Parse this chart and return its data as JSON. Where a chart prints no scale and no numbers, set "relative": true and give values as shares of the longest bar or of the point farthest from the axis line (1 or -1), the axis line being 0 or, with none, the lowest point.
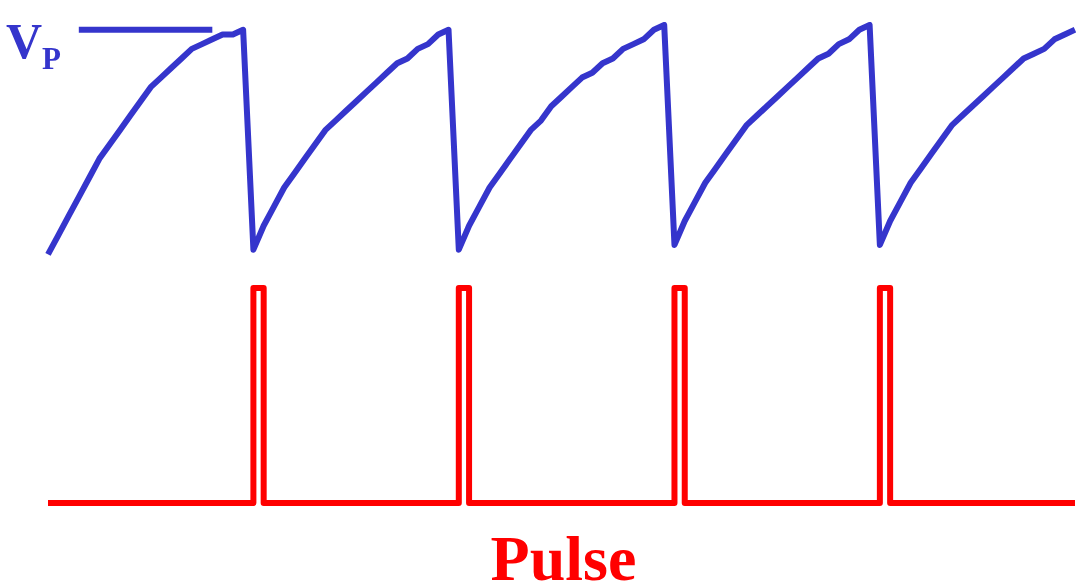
{
  "chart_data": {
    "type": "line",
    "relative": true,
    "legend": false,
    "marker": "none",
    "line_style": "solid",
    "categories": [
      null,
      null,
      null,
      null,
      null,
      null,
      null,
      null,
      null,
      null,
      null,
      null,
      null,
      null,
      null,
      null,
      null,
      null,
      null,
      null,
      null,
      null,
      null,
      null,
      null,
      null,
      null,
      null,
      null,
      null,
      null,
      null,
      null,
      null,
      null,
      null,
      null,
      null,
      null,
      null,
      null,
      null,
      null,
      null,
      null,
      null,
      null,
      null,
      null,
      null,
      null,
      null,
      null,
      null,
      null,
      null,
      null,
      null,
      null,
      null,
      null,
      null,
      null,
      null,
      null,
      null,
      null,
      null,
      null,
      null,
      null,
      null,
      null,
      null,
      null,
      null,
      null,
      null,
      null,
      null,
      null,
      null,
      null,
      null,
      null,
      null,
      null,
      null,
      null,
      null,
      null,
      null,
      null,
      null,
      null,
      null,
      null,
      null,
      null,
      null,
      null
    ],
    "annotations": [
      "V$_{P}$",
      "Pulse"
    ],
    "series": [
      {
        "color": "#3535cc",
        "values": [
          0.52,
          0.56,
          0.6,
          0.64,
          0.68,
          0.72,
          0.75,
          0.78,
          0.81,
          0.84,
          0.87,
          0.89,
          0.91,
          0.93,
          0.95,
          0.96,
          0.97,
          0.98,
          0.98,
          0.99,
          0.53,
          0.58,
          0.62,
          0.66,
          0.69,
          0.72,
          0.75,
          0.78,
          0.8,
          0.82,
          0.84,
          0.86,
          0.88,
          0.9,
          0.92,
          0.93,
          0.95,
          0.96,
          0.98,
          0.99,
          0.53,
          0.58,
          0.62,
          0.66,
          0.69,
          0.72,
          0.75,
          0.78,
          0.8,
          0.83,
          0.85,
          0.87,
          0.89,
          0.9,
          0.92,
          0.93,
          0.95,
          0.96,
          0.97,
          0.99,
          1.0,
          0.54,
          0.59,
          0.63,
          0.67,
          0.7,
          0.73,
          0.76,
          0.79,
          0.81,
          0.83,
          0.85,
          0.87,
          0.89,
          0.91,
          0.93,
          0.94,
          0.96,
          0.97,
          0.99,
          1.0,
          0.54,
          0.59,
          0.63,
          0.67,
          0.7,
          0.73,
          0.76,
          0.79,
          0.81,
          0.83,
          0.85,
          0.87,
          0.89,
          0.91,
          0.93,
          0.94,
          0.95,
          0.97,
          0.98,
          0.99
        ]
      },
      {
        "color": "#3535cc",
        "values": [
          null,
          null,
          null,
          0.99,
          0.99,
          0.99,
          0.99,
          0.99,
          0.99,
          0.99,
          0.99,
          0.99,
          0.99,
          0.99,
          0.99,
          0.99,
          0.99,
          null,
          null,
          null,
          null,
          null,
          null,
          null,
          null,
          null,
          null,
          null,
          null,
          null,
          null,
          null,
          null,
          null,
          null,
          null,
          null,
          null,
          null,
          null,
          null,
          null,
          null,
          null,
          null,
          null,
          null,
          null,
          null,
          null,
          null,
          null,
          null,
          null,
          null,
          null,
          null,
          null,
          null,
          null,
          null,
          null,
          null,
          null,
          null,
          null,
          null,
          null,
          null,
          null,
          null,
          null,
          null,
          null,
          null,
          null,
          null,
          null,
          null,
          null,
          null,
          null,
          null,
          null,
          null,
          null,
          null,
          null,
          null,
          null,
          null,
          null,
          null,
          null,
          null,
          null,
          null,
          null,
          null,
          null,
          null
        ]
      },
      {
        "type": "step",
        "color": "#ff0000",
        "values": [
          0,
          0,
          0,
          0,
          0,
          0,
          0,
          0,
          0,
          0,
          0,
          0,
          0,
          0,
          0,
          0,
          0,
          0,
          0,
          0,
          0.45,
          0,
          0,
          0,
          0,
          0,
          0,
          0,
          0,
          0,
          0,
          0,
          0,
          0,
          0,
          0,
          0,
          0,
          0,
          0,
          0.45,
          0,
          0,
          0,
          0,
          0,
          0,
          0,
          0,
          0,
          0,
          0,
          0,
          0,
          0,
          0,
          0,
          0,
          0,
          0,
          0,
          0.45,
          0,
          0,
          0,
          0,
          0,
          0,
          0,
          0,
          0,
          0,
          0,
          0,
          0,
          0,
          0,
          0,
          0,
          0,
          0,
          0.45,
          0,
          0,
          0,
          0,
          0,
          0,
          0,
          0,
          0,
          0,
          0,
          0,
          0,
          0,
          0,
          0,
          0,
          0,
          0
        ]
      }
    ]
  }
}
